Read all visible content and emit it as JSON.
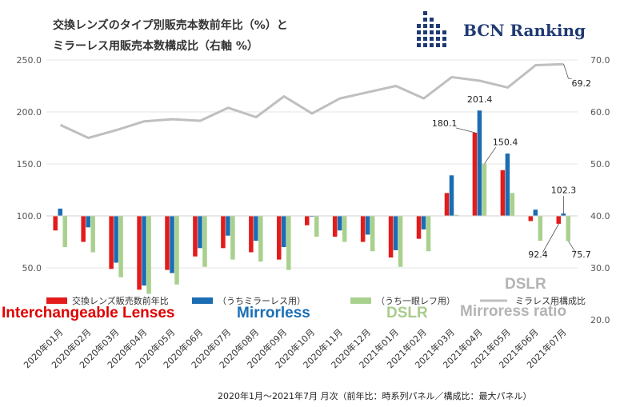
{
  "title": {
    "line1": "交換レンズのタイプ別販売本数前年比（%）と",
    "line2": "ミラーレス用販売本数構成比（右軸 %）"
  },
  "logo": {
    "text": "BCN Ranking",
    "icon": "grid-bars-logo"
  },
  "footnote": "2020年1月〜2021年7月 月次（前年比：時系列パネル／構成比：最大パネル）",
  "overlay_labels": {
    "interchangeable": "Interchangeable Lenses",
    "mirrorless": "Mirrorless",
    "dslr": "DSLR",
    "dslr_line": "DSLR",
    "mirrorless_ratio": "Mirroress ratio"
  },
  "colors": {
    "interchangeable": "#e31b1b",
    "mirrorless": "#1b6db3",
    "dslr": "#a9d18e",
    "ratio_line": "#bfbfbf"
  },
  "chart_data": {
    "type": "bar",
    "categories": [
      "2020年01月",
      "2020年02月",
      "2020年03月",
      "2020年04月",
      "2020年05月",
      "2020年06月",
      "2020年07月",
      "2020年08月",
      "2020年09月",
      "2020年10月",
      "2020年11月",
      "2020年12月",
      "2021年01月",
      "2021年02月",
      "2021年03月",
      "2021年04月",
      "2021年05月",
      "2021年06月",
      "2021年07月"
    ],
    "series": [
      {
        "name": "交換レンズ販売数前年比",
        "axis": "left",
        "values": [
          86,
          75,
          49,
          29,
          48,
          61,
          69,
          65,
          58,
          91,
          80,
          75,
          60,
          78,
          122,
          180.1,
          144,
          95,
          92.4
        ]
      },
      {
        "name": "（うちミラーレス用）",
        "axis": "left",
        "values": [
          107,
          89,
          55,
          33,
          45,
          69,
          81,
          76,
          70,
          100,
          86,
          82,
          67,
          87,
          139,
          201.4,
          160,
          106,
          102.3
        ]
      },
      {
        "name": "（うち一眼レフ用）",
        "axis": "left",
        "values": [
          70,
          65,
          41,
          25,
          34,
          51,
          58,
          56,
          48,
          80,
          75,
          66,
          51,
          66,
          101,
          150.4,
          122,
          76,
          75.7
        ]
      },
      {
        "name": "ミラレス用構成比",
        "axis": "right",
        "type": "line",
        "values": [
          57.5,
          55,
          56.5,
          58.2,
          58.6,
          58.3,
          60.8,
          59,
          63,
          59.7,
          62.6,
          63.8,
          65,
          62.6,
          66.7,
          66,
          64.7,
          69,
          69.2
        ]
      }
    ],
    "data_labels": [
      "180.1",
      "201.4",
      "150.4",
      "102.3",
      "92.4",
      "75.7",
      "69.2"
    ],
    "yaxis_left": {
      "ylim": [
        0,
        250
      ],
      "ticks": [
        "250.0",
        "200.0",
        "150.0",
        "100.0",
        "50.0"
      ]
    },
    "yaxis_right": {
      "ylim": [
        20,
        70
      ],
      "ticks": [
        "70.0",
        "60.0",
        "50.0",
        "40.0",
        "30.0",
        "20.0"
      ]
    },
    "baseline": 100,
    "grid": true,
    "legend_position": "bottom"
  }
}
